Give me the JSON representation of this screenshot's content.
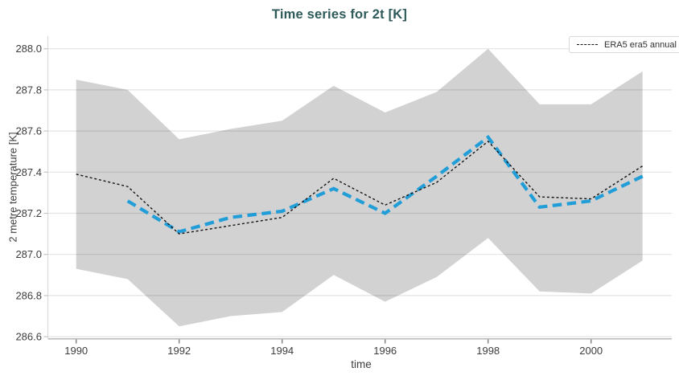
{
  "chart_data": {
    "type": "line",
    "title": "Time series for 2t [K]",
    "xlabel": "time",
    "ylabel": "2 metre temperature [K]",
    "x_ticks": [
      1990,
      1992,
      1994,
      1996,
      1998,
      2000
    ],
    "y_ticks": [
      288.0,
      287.8,
      287.6,
      287.4,
      287.2,
      287.0,
      286.8,
      286.6
    ],
    "xlim": [
      1989.46,
      2001.57
    ],
    "ylim": [
      286.6,
      288.06
    ],
    "grid": "horizontal-only",
    "legend": {
      "position": "top-right",
      "entries": [
        {
          "label": "ERA5 era5 annual",
          "marker": "black-dashed-line"
        }
      ]
    },
    "band": {
      "name": "ensemble-spread-band",
      "color": "#d2d2d2",
      "years": [
        1990,
        1991,
        1992,
        1993,
        1994,
        1995,
        1996,
        1997,
        1998,
        1999,
        2000,
        2001
      ],
      "upper": [
        287.85,
        287.8,
        287.56,
        287.61,
        287.65,
        287.82,
        287.69,
        287.79,
        288.0,
        287.73,
        287.73,
        287.89
      ],
      "lower": [
        286.93,
        286.88,
        286.65,
        286.7,
        286.72,
        286.9,
        286.77,
        286.89,
        287.08,
        286.82,
        286.81,
        286.97
      ]
    },
    "series": [
      {
        "name": "ERA5 era5 annual",
        "color": "#141414",
        "line_style": "thin-dashed",
        "years": [
          1990,
          1991,
          1992,
          1993,
          1994,
          1995,
          1996,
          1997,
          1998,
          1999,
          2000,
          2001
        ],
        "values": [
          287.39,
          287.33,
          287.1,
          287.14,
          287.18,
          287.37,
          287.24,
          287.35,
          287.55,
          287.28,
          287.27,
          287.43
        ]
      },
      {
        "name": "unlabeled blue dashed series",
        "color": "#219dd8",
        "line_style": "thick-dashed",
        "years": [
          1991,
          1992,
          1993,
          1994,
          1995,
          1996,
          1997,
          1998,
          1999,
          2000,
          2001
        ],
        "values": [
          287.26,
          287.11,
          287.18,
          287.21,
          287.32,
          287.2,
          287.38,
          287.57,
          287.23,
          287.26,
          287.38
        ]
      }
    ]
  },
  "colors": {
    "title": "#2e5a59",
    "tick_label": "#3d3d3d",
    "gridline": "#e4e4e4",
    "axis_line": "#bdbdbd",
    "y_axis_line": "#dadada",
    "x_tick": "#8a8a8a",
    "y_tick": "#c4c4c4",
    "background": "#ffffff",
    "legend_border": "#d8d8d8"
  }
}
